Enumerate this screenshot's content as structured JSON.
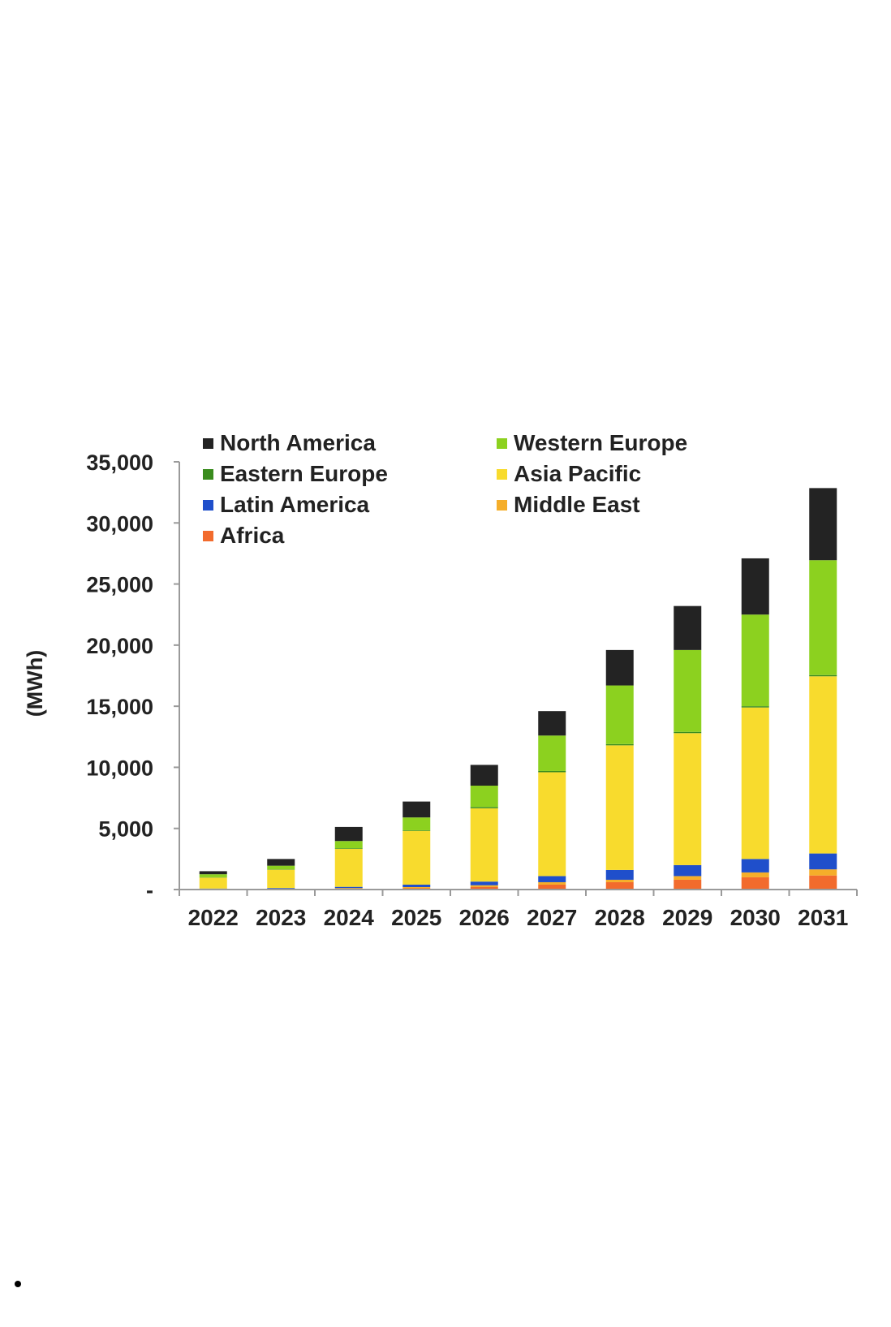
{
  "chart_data": {
    "type": "bar",
    "stacked": true,
    "title": "",
    "xlabel": "",
    "ylabel": "(MWh)",
    "ylim": [
      0,
      35000
    ],
    "y_ticks": [
      {
        "value": 0,
        "label": "-"
      },
      {
        "value": 5000,
        "label": "5,000"
      },
      {
        "value": 10000,
        "label": "10,000"
      },
      {
        "value": 15000,
        "label": "15,000"
      },
      {
        "value": 20000,
        "label": "20,000"
      },
      {
        "value": 25000,
        "label": "25,000"
      },
      {
        "value": 30000,
        "label": "30,000"
      },
      {
        "value": 35000,
        "label": "35,000"
      }
    ],
    "grid": false,
    "legend_position": "top-left",
    "categories": [
      "2022",
      "2023",
      "2024",
      "2025",
      "2026",
      "2027",
      "2028",
      "2029",
      "2030",
      "2031"
    ],
    "series": [
      {
        "name": "Africa",
        "color": "#F26B2D",
        "values": [
          20,
          30,
          60,
          100,
          200,
          400,
          600,
          800,
          1000,
          1150
        ]
      },
      {
        "name": "Middle East",
        "color": "#F5AE2A",
        "values": [
          20,
          30,
          60,
          100,
          150,
          200,
          200,
          300,
          400,
          500
        ]
      },
      {
        "name": "Latin America",
        "color": "#1F4FCB",
        "values": [
          40,
          60,
          100,
          200,
          300,
          500,
          800,
          900,
          1100,
          1300
        ]
      },
      {
        "name": "Asia Pacific",
        "color": "#F8DB2D",
        "values": [
          900,
          1500,
          3100,
          4400,
          6000,
          8500,
          10200,
          10800,
          12400,
          14500
        ]
      },
      {
        "name": "Eastern Europe",
        "color": "#3A8C1E",
        "values": [
          20,
          30,
          50,
          50,
          100,
          100,
          100,
          100,
          100,
          100
        ]
      },
      {
        "name": "Western Europe",
        "color": "#8CD11F",
        "values": [
          250,
          300,
          600,
          1050,
          1750,
          2900,
          4800,
          6700,
          7500,
          9400
        ]
      },
      {
        "name": "North America",
        "color": "#232323",
        "values": [
          250,
          550,
          1150,
          1300,
          1700,
          2000,
          2900,
          3600,
          4600,
          5900
        ]
      }
    ],
    "legend_order": [
      "North America",
      "Western Europe",
      "Eastern Europe",
      "Asia Pacific",
      "Latin America",
      "Middle East",
      "Africa"
    ]
  }
}
